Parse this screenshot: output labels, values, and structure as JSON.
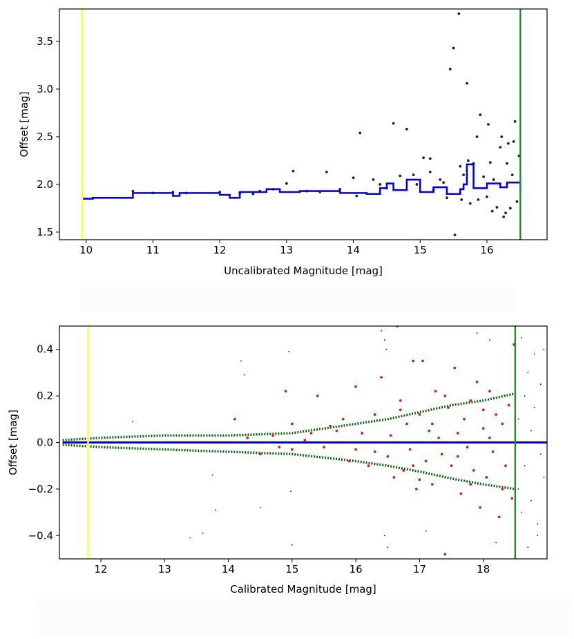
{
  "chart_data": [
    {
      "type": "scatter",
      "title": "",
      "xlabel": "Uncalibrated Magnitude [mag]",
      "ylabel": "Offset [mag]",
      "xlim": [
        9.6,
        16.9
      ],
      "ylim": [
        1.42,
        3.84
      ],
      "xticks": [
        10,
        11,
        12,
        13,
        14,
        15,
        16
      ],
      "xtick_labels": [
        "10",
        "11",
        "12",
        "13",
        "14",
        "15",
        "16"
      ],
      "yticks": [
        1.5,
        2.0,
        2.5,
        3.0,
        3.5
      ],
      "ytick_labels": [
        "1.5",
        "2.0",
        "2.5",
        "3.0",
        "3.5"
      ],
      "vlines": [
        {
          "name": "lower-limit",
          "x": 9.94,
          "color": "#ffff33"
        },
        {
          "name": "upper-limit",
          "x": 16.5,
          "color": "#228b22"
        }
      ],
      "series": [
        {
          "name": "stars",
          "color": "#222222",
          "points": [
            [
              10.7,
              1.93
            ],
            [
              11.0,
              1.91
            ],
            [
              11.3,
              1.92
            ],
            [
              11.5,
              1.91
            ],
            [
              12.0,
              1.92
            ],
            [
              12.3,
              1.91
            ],
            [
              12.5,
              1.9
            ],
            [
              12.6,
              1.93
            ],
            [
              12.8,
              1.95
            ],
            [
              13.0,
              2.01
            ],
            [
              13.1,
              2.14
            ],
            [
              13.3,
              1.93
            ],
            [
              13.5,
              1.92
            ],
            [
              13.6,
              2.13
            ],
            [
              13.8,
              1.95
            ],
            [
              14.0,
              2.07
            ],
            [
              14.05,
              1.88
            ],
            [
              14.1,
              2.54
            ],
            [
              14.3,
              2.05
            ],
            [
              14.5,
              1.96
            ],
            [
              14.6,
              2.64
            ],
            [
              14.7,
              2.09
            ],
            [
              14.8,
              2.58
            ],
            [
              14.9,
              2.1
            ],
            [
              14.95,
              2.0
            ],
            [
              15.05,
              2.28
            ],
            [
              15.15,
              2.27
            ],
            [
              15.2,
              1.94
            ],
            [
              15.3,
              2.05
            ],
            [
              15.4,
              1.86
            ],
            [
              15.45,
              3.21
            ],
            [
              15.5,
              3.43
            ],
            [
              15.52,
              1.47
            ],
            [
              15.6,
              2.19
            ],
            [
              15.62,
              1.84
            ],
            [
              15.65,
              2.1
            ],
            [
              15.7,
              3.06
            ],
            [
              15.72,
              2.25
            ],
            [
              15.75,
              1.8
            ],
            [
              15.8,
              2.22
            ],
            [
              15.85,
              2.5
            ],
            [
              15.87,
              1.84
            ],
            [
              15.9,
              2.73
            ],
            [
              15.95,
              2.08
            ],
            [
              16.0,
              1.87
            ],
            [
              16.02,
              2.63
            ],
            [
              16.05,
              2.23
            ],
            [
              16.08,
              1.72
            ],
            [
              16.1,
              2.05
            ],
            [
              16.15,
              1.76
            ],
            [
              16.2,
              2.39
            ],
            [
              16.22,
              2.5
            ],
            [
              16.25,
              1.66
            ],
            [
              16.3,
              2.22
            ],
            [
              16.32,
              2.43
            ],
            [
              16.35,
              1.75
            ],
            [
              16.38,
              2.1
            ],
            [
              16.4,
              2.45
            ],
            [
              16.42,
              2.66
            ],
            [
              16.45,
              1.82
            ],
            [
              16.48,
              2.3
            ],
            [
              15.58,
              3.79
            ],
            [
              15.15,
              2.13
            ],
            [
              14.4,
              2.0
            ],
            [
              15.35,
              2.02
            ],
            [
              16.28,
              1.7
            ]
          ]
        },
        {
          "name": "running-median",
          "type": "step",
          "color": "#0000ee",
          "x": [
            9.94,
            10.1,
            10.7,
            11.3,
            11.4,
            12.0,
            12.15,
            12.3,
            12.7,
            12.9,
            13.2,
            13.8,
            14.2,
            14.4,
            14.5,
            14.6,
            14.8,
            15.0,
            15.2,
            15.4,
            15.6,
            15.65,
            15.7,
            15.8,
            16.0,
            16.2,
            16.3,
            16.5
          ],
          "y": [
            1.85,
            1.86,
            1.91,
            1.88,
            1.91,
            1.89,
            1.86,
            1.92,
            1.95,
            1.92,
            1.93,
            1.91,
            1.9,
            1.96,
            2.01,
            1.94,
            2.05,
            1.92,
            1.97,
            1.9,
            1.95,
            2.0,
            2.21,
            1.96,
            2.01,
            1.97,
            2.02,
            1.95
          ]
        }
      ]
    },
    {
      "type": "scatter",
      "title": "",
      "xlabel": "Calibrated Magnitude [mag]",
      "ylabel": "Offset [mag]",
      "xlim": [
        11.35,
        19.0
      ],
      "ylim": [
        -0.5,
        0.5
      ],
      "xticks": [
        12,
        13,
        14,
        15,
        16,
        17,
        18
      ],
      "xtick_labels": [
        "12",
        "13",
        "14",
        "15",
        "16",
        "17",
        "18"
      ],
      "yticks": [
        -0.4,
        -0.2,
        0.0,
        0.2,
        0.4
      ],
      "ytick_labels": [
        "−0.4",
        "−0.2",
        "0.0",
        "0.2",
        "0.4"
      ],
      "vlines": [
        {
          "name": "lower-limit",
          "x": 11.8,
          "color": "#ffff33"
        },
        {
          "name": "upper-limit",
          "x": 18.5,
          "color": "#228b22"
        }
      ],
      "series": [
        {
          "name": "median-zero",
          "type": "line",
          "color": "#0000cc",
          "x": [
            11.4,
            19.0
          ],
          "y": [
            0.0,
            0.0
          ]
        },
        {
          "name": "upper-envelope",
          "type": "line",
          "color": "#116611",
          "x": [
            11.4,
            12.0,
            13.0,
            14.0,
            14.5,
            15.0,
            15.5,
            16.0,
            16.5,
            17.0,
            17.5,
            18.0,
            18.5
          ],
          "y": [
            0.01,
            0.02,
            0.03,
            0.03,
            0.035,
            0.04,
            0.06,
            0.08,
            0.1,
            0.13,
            0.16,
            0.18,
            0.21
          ]
        },
        {
          "name": "lower-envelope",
          "type": "line",
          "color": "#116611",
          "x": [
            11.4,
            12.0,
            13.0,
            14.0,
            14.5,
            15.0,
            15.5,
            16.0,
            16.5,
            17.0,
            17.5,
            18.0,
            18.5
          ],
          "y": [
            -0.01,
            -0.02,
            -0.03,
            -0.04,
            -0.045,
            -0.05,
            -0.065,
            -0.08,
            -0.1,
            -0.125,
            -0.155,
            -0.18,
            -0.2
          ]
        },
        {
          "name": "calibrated-stars",
          "color": "#cc2222",
          "points": [
            [
              14.1,
              0.1
            ],
            [
              14.3,
              0.02
            ],
            [
              14.5,
              -0.05
            ],
            [
              14.7,
              0.03
            ],
            [
              14.9,
              0.22
            ],
            [
              15.0,
              -0.03
            ],
            [
              15.2,
              0.01
            ],
            [
              15.4,
              0.2
            ],
            [
              15.5,
              -0.02
            ],
            [
              15.7,
              0.05
            ],
            [
              15.8,
              0.1
            ],
            [
              15.9,
              -0.08
            ],
            [
              16.0,
              0.24
            ],
            [
              16.1,
              0.04
            ],
            [
              16.2,
              -0.1
            ],
            [
              16.3,
              0.12
            ],
            [
              16.4,
              0.28
            ],
            [
              16.5,
              -0.06
            ],
            [
              16.55,
              0.03
            ],
            [
              16.6,
              -0.15
            ],
            [
              16.65,
              0.5
            ],
            [
              16.7,
              0.18
            ],
            [
              16.75,
              -0.12
            ],
            [
              16.8,
              0.08
            ],
            [
              16.85,
              -0.03
            ],
            [
              16.9,
              0.35
            ],
            [
              16.95,
              -0.2
            ],
            [
              17.0,
              0.12
            ],
            [
              17.05,
              0.35
            ],
            [
              17.1,
              -0.08
            ],
            [
              17.15,
              0.05
            ],
            [
              17.2,
              -0.18
            ],
            [
              17.25,
              0.22
            ],
            [
              17.3,
              0.02
            ],
            [
              17.35,
              -0.05
            ],
            [
              17.4,
              -0.48
            ],
            [
              17.45,
              0.15
            ],
            [
              17.5,
              -0.1
            ],
            [
              17.55,
              0.32
            ],
            [
              17.6,
              0.04
            ],
            [
              17.65,
              -0.22
            ],
            [
              17.7,
              0.1
            ],
            [
              17.75,
              -0.02
            ],
            [
              17.8,
              0.18
            ],
            [
              17.85,
              -0.12
            ],
            [
              17.9,
              0.26
            ],
            [
              17.95,
              -0.28
            ],
            [
              18.0,
              0.06
            ],
            [
              18.05,
              -0.15
            ],
            [
              18.1,
              0.22
            ],
            [
              18.15,
              -0.04
            ],
            [
              18.2,
              0.12
            ],
            [
              18.25,
              -0.32
            ],
            [
              18.3,
              0.08
            ],
            [
              18.35,
              -0.1
            ],
            [
              18.4,
              0.16
            ],
            [
              18.45,
              -0.24
            ],
            [
              18.48,
              0.42
            ],
            [
              17.2,
              0.08
            ],
            [
              16.3,
              -0.04
            ],
            [
              15.6,
              0.07
            ],
            [
              17.6,
              -0.06
            ],
            [
              18.1,
              0.02
            ],
            [
              16.9,
              -0.1
            ],
            [
              17.8,
              -0.18
            ],
            [
              15.3,
              0.04
            ],
            [
              16.7,
              0.14
            ],
            [
              17.4,
              0.2
            ],
            [
              18.3,
              -0.2
            ],
            [
              15.0,
              0.08
            ],
            [
              14.8,
              -0.02
            ],
            [
              16.0,
              -0.03
            ],
            [
              17.0,
              -0.16
            ],
            [
              18.0,
              0.14
            ]
          ]
        },
        {
          "name": "outliers",
          "color": "#111111",
          "points": [
            [
              12.5,
              0.09
            ],
            [
              13.4,
              -0.41
            ],
            [
              13.6,
              -0.39
            ],
            [
              13.75,
              -0.14
            ],
            [
              13.8,
              -0.29
            ],
            [
              14.2,
              0.35
            ],
            [
              14.25,
              0.29
            ],
            [
              14.5,
              -0.28
            ],
            [
              14.95,
              0.39
            ],
            [
              14.98,
              -0.21
            ],
            [
              15.0,
              -0.44
            ],
            [
              16.45,
              -0.4
            ],
            [
              16.5,
              -0.45
            ],
            [
              16.4,
              0.48
            ],
            [
              16.45,
              0.44
            ],
            [
              16.48,
              0.4
            ],
            [
              17.1,
              -0.38
            ],
            [
              17.9,
              0.47
            ],
            [
              18.1,
              0.44
            ],
            [
              18.2,
              -0.43
            ],
            [
              18.6,
              0.45
            ],
            [
              18.7,
              0.3
            ],
            [
              18.8,
              0.15
            ],
            [
              18.9,
              0.25
            ],
            [
              18.65,
              -0.1
            ],
            [
              18.75,
              -0.25
            ],
            [
              18.85,
              -0.35
            ],
            [
              18.95,
              -0.15
            ],
            [
              18.55,
              0.1
            ],
            [
              18.6,
              -0.3
            ],
            [
              18.7,
              -0.45
            ],
            [
              18.8,
              0.38
            ],
            [
              18.9,
              -0.05
            ],
            [
              18.95,
              0.4
            ],
            [
              18.55,
              -0.2
            ],
            [
              18.65,
              0.2
            ],
            [
              18.75,
              0.05
            ],
            [
              18.85,
              -0.4
            ]
          ]
        }
      ]
    }
  ]
}
